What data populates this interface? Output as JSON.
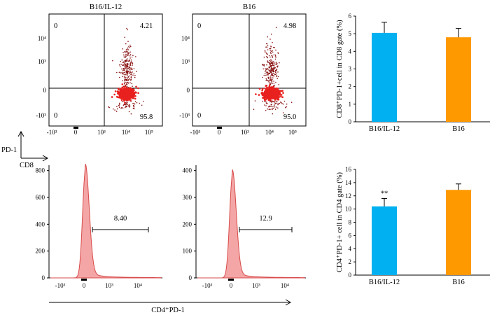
{
  "chart_data": [
    {
      "type": "scatter",
      "title": "B16/IL-12",
      "quadrants": {
        "upper_left": "0",
        "upper_right": "4.21",
        "lower_left": "0",
        "lower_right": "95.8"
      },
      "xticks": [
        "-10³",
        "0",
        "10³",
        "10⁴",
        "10⁵"
      ],
      "yticks": [
        "10⁴",
        "10³",
        "0",
        "-10³"
      ],
      "series": [
        {
          "color": "#e8201e"
        }
      ]
    },
    {
      "type": "scatter",
      "title": "B16",
      "quadrants": {
        "upper_left": "0",
        "upper_right": "4.98",
        "lower_left": "0",
        "lower_right": "95.0"
      },
      "xticks": [
        "-10³",
        "0",
        "10³",
        "10⁴",
        "10⁵"
      ],
      "yticks": [
        "10⁴",
        "10³",
        "0",
        "-10³"
      ],
      "series": [
        {
          "color": "#e8201e"
        }
      ]
    },
    {
      "type": "area",
      "title": "",
      "gate_label": "8.40",
      "yticks": [
        "800",
        "600",
        "400",
        "200",
        "0"
      ],
      "xticks": [
        "-10³",
        "0",
        "10³",
        "10⁴"
      ],
      "ylim": [
        0,
        840
      ],
      "peak_count": 800,
      "fill_color": "#f4a6a6",
      "line_color": "#d84a4a"
    },
    {
      "type": "area",
      "title": "",
      "gate_label": "12.9",
      "yticks": [
        "400",
        "300",
        "200",
        "100",
        "0"
      ],
      "xticks": [
        "-10³",
        "0",
        "10³",
        "10⁴"
      ],
      "ylim": [
        0,
        420
      ],
      "peak_count": 380,
      "fill_color": "#f4a6a6",
      "line_color": "#d84a4a"
    },
    {
      "type": "bar",
      "categories": [
        "B16/IL-12",
        "B16"
      ],
      "values": [
        5.05,
        4.8
      ],
      "errors": [
        0.6,
        0.5
      ],
      "colors": [
        "#00b0f0",
        "#ff9900"
      ],
      "ylabel": "CD8⁺PD-1+cell in CD8 gate (%)",
      "yticks": [
        "6",
        "5",
        "4",
        "3",
        "2",
        "1",
        "0"
      ],
      "ylim": [
        0,
        6
      ]
    },
    {
      "type": "bar",
      "categories": [
        "B16/IL-12",
        "B16"
      ],
      "values": [
        10.4,
        12.9
      ],
      "errors": [
        1.2,
        0.9
      ],
      "colors": [
        "#00b0f0",
        "#ff9900"
      ],
      "annotations": [
        "**",
        ""
      ],
      "ylabel": "CD4⁺PD-1+ cell in CD4 gate (%)",
      "yticks": [
        "16",
        "14",
        "12",
        "10",
        "8",
        "6",
        "4",
        "2",
        "0"
      ],
      "ylim": [
        0,
        16
      ]
    }
  ],
  "axes_labels": {
    "pd1": "PD-1",
    "cd8": "CD8",
    "cd4pd1": "CD4⁺PD-1"
  }
}
